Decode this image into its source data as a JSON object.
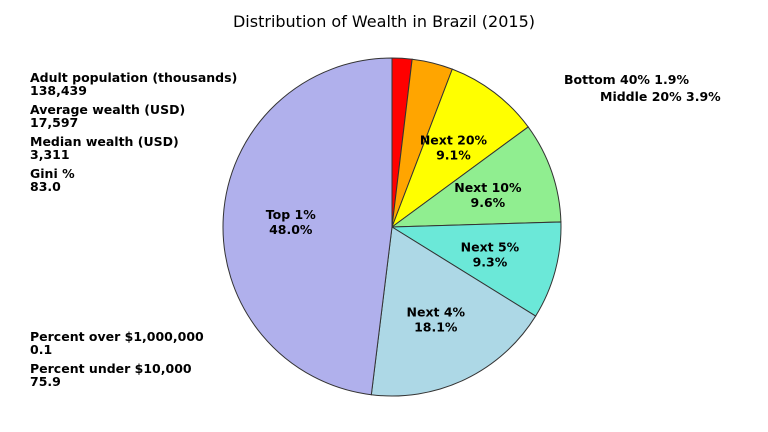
{
  "chart_data": {
    "type": "pie",
    "title": "Distribution of Wealth in Brazil (2015)",
    "slices": [
      {
        "label": "Bottom 40%",
        "value": 1.9,
        "display": "1.9%",
        "color": "#ff0000",
        "label_position": "outside"
      },
      {
        "label": "Middle 20%",
        "value": 3.9,
        "display": "3.9%",
        "color": "#ffa500",
        "label_position": "outside"
      },
      {
        "label": "Next 20%",
        "value": 9.1,
        "display": "9.1%",
        "color": "#ffff00",
        "label_position": "inside"
      },
      {
        "label": "Next 10%",
        "value": 9.6,
        "display": "9.6%",
        "color": "#90ee90",
        "label_position": "inside"
      },
      {
        "label": "Next 5%",
        "value": 9.3,
        "display": "9.3%",
        "color": "#6be8d8",
        "label_position": "inside"
      },
      {
        "label": "Next 4%",
        "value": 18.1,
        "display": "18.1%",
        "color": "#add8e6",
        "label_position": "inside"
      },
      {
        "label": "Top 1%",
        "value": 48.0,
        "display": "48.0%",
        "color": "#b0b0ec",
        "label_position": "inside"
      }
    ],
    "start_angle": "top",
    "direction": "clockwise"
  },
  "stats": {
    "top": [
      {
        "label": "Adult population (thousands)",
        "value": "138,439"
      },
      {
        "label": "Average wealth (USD)",
        "value": "17,597"
      },
      {
        "label": "Median wealth (USD)",
        "value": "3,311"
      },
      {
        "label": "Gini %",
        "value": "83.0"
      }
    ],
    "bottom": [
      {
        "label": "Percent over $1,000,000",
        "value": "0.1"
      },
      {
        "label": "Percent under $10,000",
        "value": "75.9"
      }
    ]
  },
  "outside_labels": {
    "bottom40": "Bottom 40% 1.9%",
    "middle20": "Middle 20% 3.9%"
  }
}
